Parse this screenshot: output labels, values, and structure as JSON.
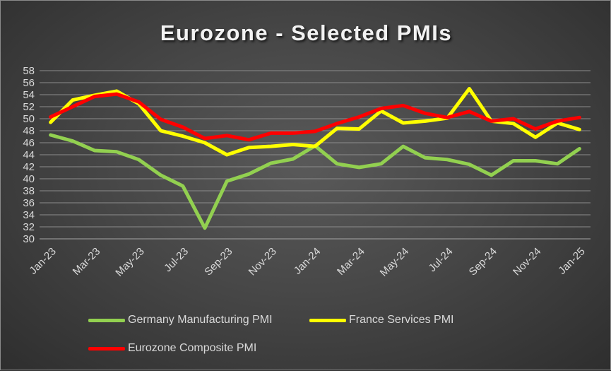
{
  "chart_data": {
    "type": "line",
    "title": "Eurozone - Selected PMIs",
    "xlabel": "",
    "ylabel": "",
    "ylim": [
      30,
      58
    ],
    "y_ticks": [
      30,
      32,
      34,
      36,
      38,
      40,
      42,
      44,
      46,
      48,
      50,
      52,
      54,
      56,
      58
    ],
    "grid": true,
    "legend_position": "bottom",
    "x": [
      "Jan-23",
      "Feb-23",
      "Mar-23",
      "Apr-23",
      "May-23",
      "Jun-23",
      "Jul-23",
      "Aug-23",
      "Sep-23",
      "Oct-23",
      "Nov-23",
      "Dec-23",
      "Jan-24",
      "Feb-24",
      "Mar-24",
      "Apr-24",
      "May-24",
      "Jun-24",
      "Jul-24",
      "Aug-24",
      "Sep-24",
      "Oct-24",
      "Nov-24",
      "Dec-24",
      "Jan-25"
    ],
    "x_tick_labels": [
      "Jan-23",
      "Mar-23",
      "May-23",
      "Jul-23",
      "Sep-23",
      "Nov-23",
      "Jan-24",
      "Mar-24",
      "May-24",
      "Jul-24",
      "Sep-24",
      "Nov-24",
      "Jan-25"
    ],
    "series": [
      {
        "name": "Germany Manufacturing PMI",
        "color": "#92d050",
        "values": [
          47.3,
          46.3,
          44.7,
          44.5,
          43.2,
          40.6,
          38.8,
          31.8,
          39.6,
          40.8,
          42.6,
          43.3,
          45.5,
          42.5,
          41.9,
          42.5,
          45.4,
          43.5,
          43.2,
          42.4,
          40.6,
          43.0,
          43.0,
          42.5,
          45.0
        ]
      },
      {
        "name": "France Services PMI",
        "color": "#ffff00",
        "values": [
          49.4,
          53.1,
          53.9,
          54.6,
          52.5,
          48.0,
          47.1,
          46.0,
          44.0,
          45.2,
          45.4,
          45.7,
          45.4,
          48.4,
          48.3,
          51.3,
          49.3,
          49.6,
          50.1,
          55.0,
          49.6,
          49.2,
          46.9,
          49.3,
          48.2
        ]
      },
      {
        "name": "Eurozone Composite PMI",
        "color": "#ff0000",
        "values": [
          50.3,
          52.0,
          53.7,
          54.1,
          52.8,
          49.9,
          48.6,
          46.7,
          47.2,
          46.5,
          47.6,
          47.6,
          47.9,
          49.2,
          50.3,
          51.7,
          52.2,
          50.9,
          50.2,
          51.2,
          49.6,
          50.0,
          48.3,
          49.6,
          50.2
        ]
      }
    ]
  }
}
